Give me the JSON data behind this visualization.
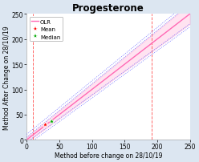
{
  "title": "Progesterone",
  "xlabel": "Method before change on 28/10/19",
  "ylabel": "Method After Change on 28/10/19",
  "xlim": [
    0,
    250
  ],
  "ylim": [
    0,
    250
  ],
  "xticks": [
    0,
    50,
    100,
    150,
    200,
    250
  ],
  "yticks": [
    0,
    50,
    100,
    150,
    200,
    250
  ],
  "background_color": "#dce6f1",
  "plot_bg_color": "#ffffff",
  "olr_slope": 1.0,
  "olr_intercept": 0.0,
  "olr_color": "#ff69b4",
  "conf_color": "#6666ff",
  "conf_upper_slope": 1.06,
  "conf_upper_intercept": 5.0,
  "conf_lower_slope": 0.94,
  "conf_lower_intercept": -5.0,
  "mean_x": 28.0,
  "mean_y": 30.5,
  "median_x": 38.0,
  "median_y": 37.5,
  "mean_color": "#ff0000",
  "median_color": "#00aa00",
  "vline_x1": 10.0,
  "vline_x2": 192.0,
  "vline_color": "#ff6666",
  "title_fontsize": 8.5,
  "axis_label_fontsize": 5.5,
  "tick_fontsize": 5.5,
  "legend_fontsize": 5.0
}
